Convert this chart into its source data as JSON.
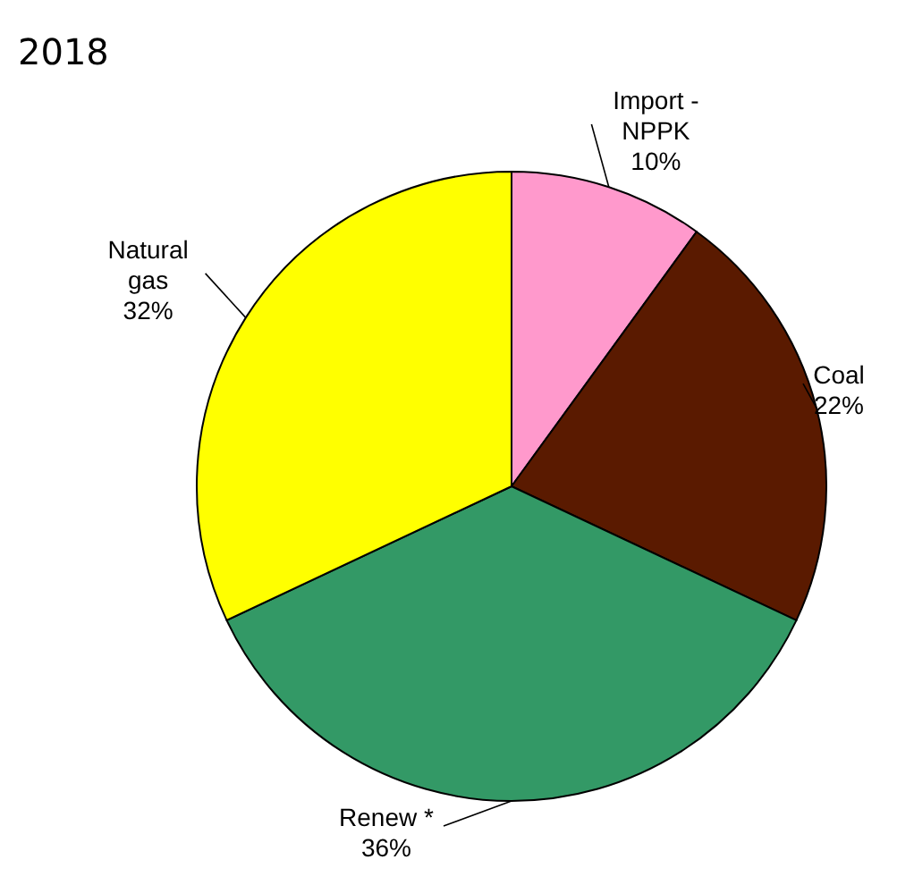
{
  "chart_data": {
    "type": "pie",
    "title": "2018",
    "categories": [
      "Import - NPPK",
      "Coal",
      "Renew *",
      "Natural gas"
    ],
    "values": [
      10,
      22,
      36,
      32
    ],
    "value_labels": [
      "10%",
      "22%",
      "36%",
      "32%"
    ],
    "colors": [
      "#ff99cc",
      "#5a1a00",
      "#339966",
      "#ffff00"
    ]
  }
}
